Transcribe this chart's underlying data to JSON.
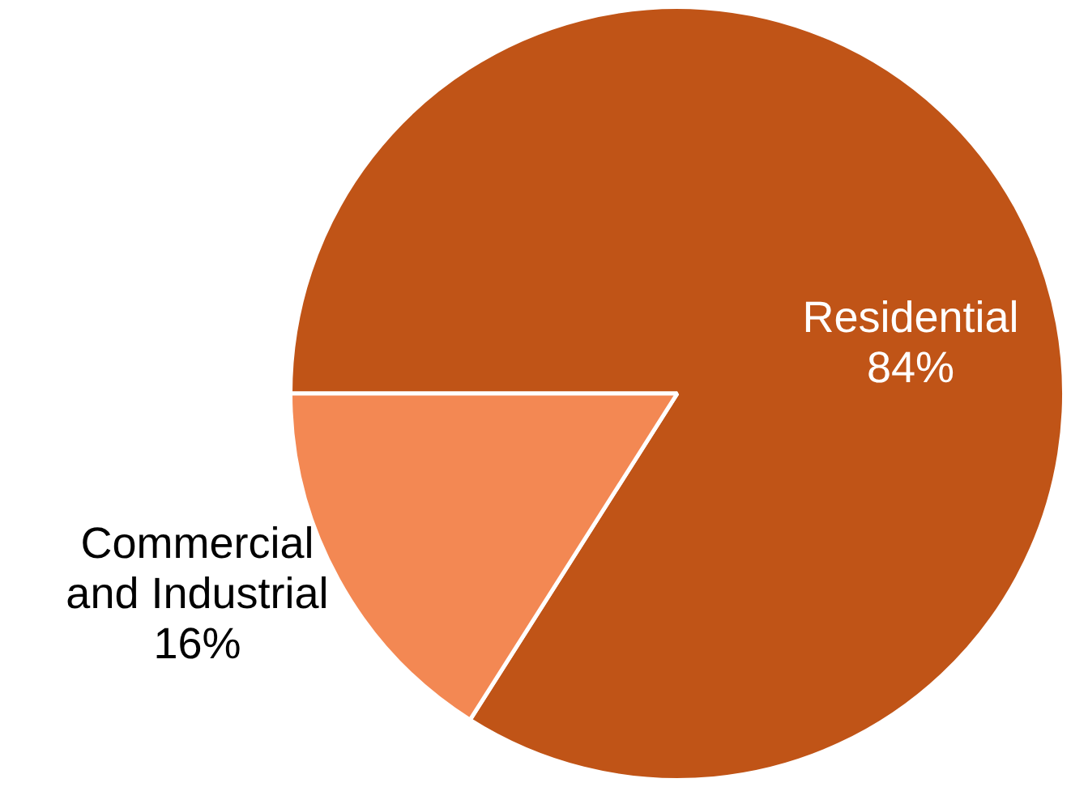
{
  "chart_data": {
    "type": "pie",
    "categories": [
      "Residential",
      "Commercial and Industrial"
    ],
    "values": [
      84,
      16
    ],
    "colors": [
      "#c05417",
      "#f38853"
    ],
    "value_labels": [
      "84%",
      "16%"
    ],
    "legend": false
  }
}
